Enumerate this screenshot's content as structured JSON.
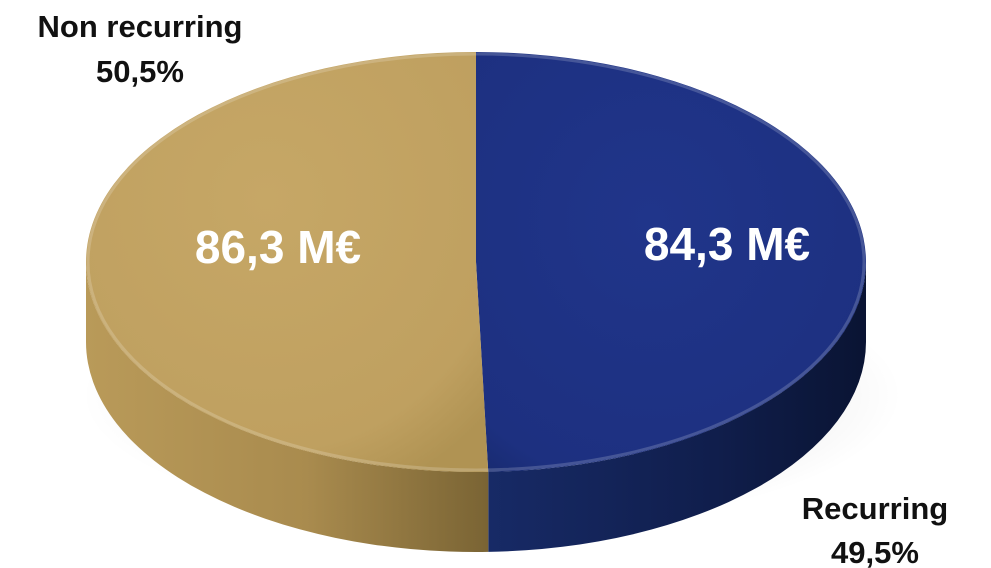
{
  "chart_data": {
    "type": "pie",
    "title": "",
    "style": "3d",
    "legend": "none",
    "slices": [
      {
        "name": "Non recurring",
        "percent_label": "50,5%",
        "percent": 50.5,
        "value": 86.3,
        "value_label": "86,3 M€",
        "color": "#c4a464",
        "side_color": "#8f7640"
      },
      {
        "name": "Recurring",
        "percent_label": "49,5%",
        "percent": 49.5,
        "value": 84.3,
        "value_label": "84,3 M€",
        "color": "#1e3282",
        "side_color": "#0d1a44"
      }
    ]
  }
}
